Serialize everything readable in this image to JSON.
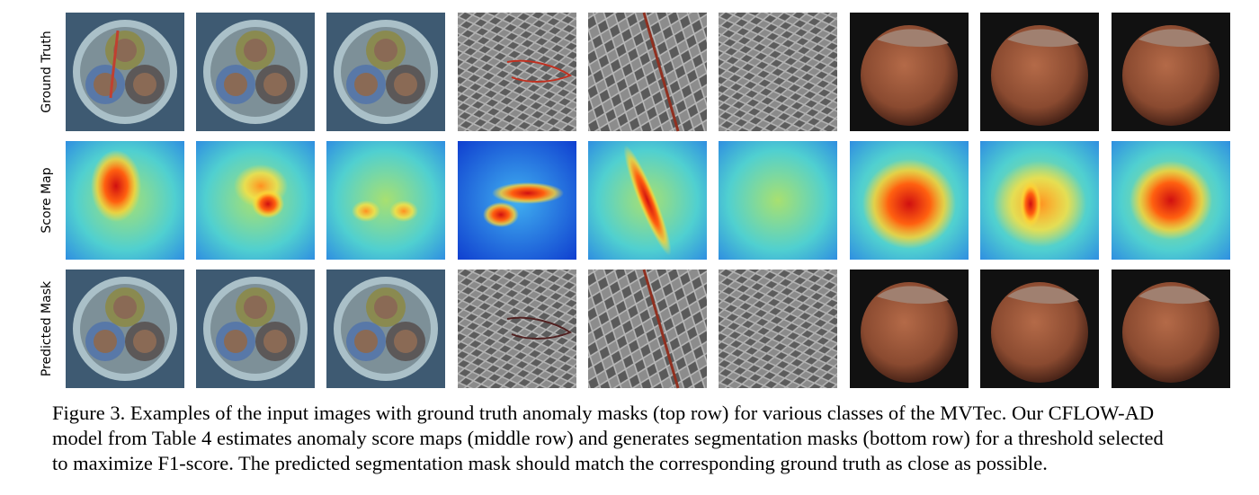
{
  "figure": {
    "row_labels": [
      "Ground Truth",
      "Score Map",
      "Predicted Mask"
    ],
    "caption_lines": [
      "Figure 3. Examples of the input images with ground truth anomaly masks (top row) for various classes of the MVTec. Our CFLOW-AD",
      "model from Table 4 estimates anomaly score maps (middle row) and generates segmentation masks (bottom row) for a threshold selected",
      "to maximize F1-score. The predicted segmentation mask should match the corresponding ground truth as close as possible."
    ]
  }
}
